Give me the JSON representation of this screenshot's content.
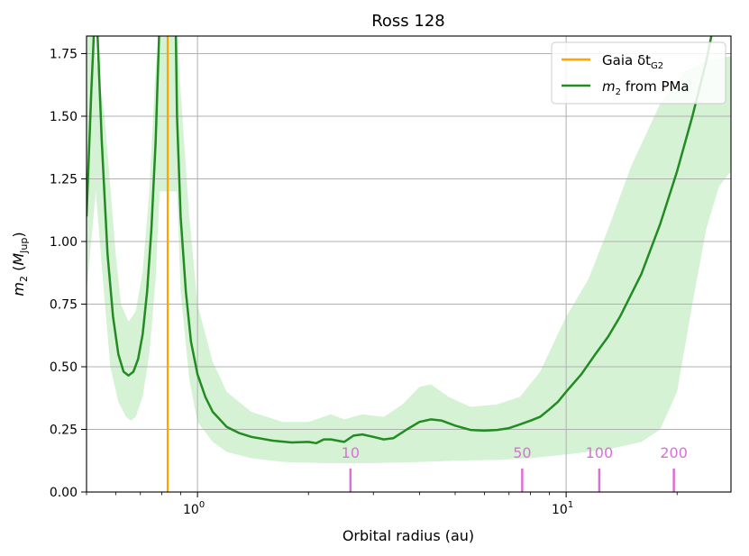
{
  "chart_data": {
    "type": "line",
    "title": "Ross 128",
    "xlabel": "Orbital radius (au)",
    "ylabel_parts": {
      "m": "m",
      "sub": "2",
      "open": " (",
      "M": "M",
      "msub": "Jup",
      "close": ")"
    },
    "x_scale": "log",
    "xlim": [
      0.5,
      28
    ],
    "ylim": [
      0,
      1.82
    ],
    "x_ticks": [
      {
        "value": 1,
        "label_base": "10",
        "label_exp": "0"
      },
      {
        "value": 10,
        "label_base": "10",
        "label_exp": "1"
      }
    ],
    "y_ticks": [
      0.0,
      0.25,
      0.5,
      0.75,
      1.0,
      1.25,
      1.5,
      1.75
    ],
    "y_tick_labels": [
      "0.00",
      "0.25",
      "0.50",
      "0.75",
      "1.00",
      "1.25",
      "1.50",
      "1.75"
    ],
    "grid": true,
    "legend_position": "top-right",
    "legend": [
      {
        "label_main": "Gaia δt",
        "label_sub": "G2",
        "color": "#ffa500"
      },
      {
        "label_main": "m",
        "label_sub": "2",
        "label_rest": " from PMa",
        "color": "#228b22"
      }
    ],
    "gaia_line": {
      "x": 0.83,
      "color": "#ffa500"
    },
    "series": [
      {
        "name": "m2 from PMa",
        "color": "#228b22",
        "points": [
          [
            0.5,
            1.1
          ],
          [
            0.515,
            1.6
          ],
          [
            0.53,
            2.0
          ],
          [
            0.55,
            1.4
          ],
          [
            0.57,
            0.95
          ],
          [
            0.59,
            0.7
          ],
          [
            0.61,
            0.55
          ],
          [
            0.63,
            0.48
          ],
          [
            0.65,
            0.465
          ],
          [
            0.67,
            0.48
          ],
          [
            0.69,
            0.53
          ],
          [
            0.71,
            0.63
          ],
          [
            0.73,
            0.8
          ],
          [
            0.75,
            1.05
          ],
          [
            0.77,
            1.4
          ],
          [
            0.79,
            1.9
          ],
          [
            0.87,
            2.0
          ],
          [
            0.88,
            1.5
          ],
          [
            0.9,
            1.1
          ],
          [
            0.93,
            0.8
          ],
          [
            0.96,
            0.6
          ],
          [
            1.0,
            0.47
          ],
          [
            1.05,
            0.38
          ],
          [
            1.1,
            0.32
          ],
          [
            1.2,
            0.26
          ],
          [
            1.3,
            0.235
          ],
          [
            1.4,
            0.22
          ],
          [
            1.6,
            0.205
          ],
          [
            1.8,
            0.198
          ],
          [
            2.0,
            0.2
          ],
          [
            2.1,
            0.195
          ],
          [
            2.2,
            0.21
          ],
          [
            2.3,
            0.21
          ],
          [
            2.5,
            0.2
          ],
          [
            2.65,
            0.225
          ],
          [
            2.8,
            0.23
          ],
          [
            3.0,
            0.22
          ],
          [
            3.2,
            0.21
          ],
          [
            3.4,
            0.215
          ],
          [
            3.7,
            0.25
          ],
          [
            4.0,
            0.28
          ],
          [
            4.3,
            0.29
          ],
          [
            4.6,
            0.285
          ],
          [
            5.0,
            0.265
          ],
          [
            5.5,
            0.248
          ],
          [
            6.0,
            0.245
          ],
          [
            6.5,
            0.248
          ],
          [
            7.0,
            0.255
          ],
          [
            7.5,
            0.27
          ],
          [
            8.0,
            0.285
          ],
          [
            8.5,
            0.3
          ],
          [
            9.0,
            0.33
          ],
          [
            9.5,
            0.36
          ],
          [
            10.0,
            0.4
          ],
          [
            11.0,
            0.47
          ],
          [
            12.0,
            0.55
          ],
          [
            13.0,
            0.62
          ],
          [
            14.0,
            0.7
          ],
          [
            16.0,
            0.87
          ],
          [
            18.0,
            1.07
          ],
          [
            20.0,
            1.28
          ],
          [
            22.0,
            1.5
          ],
          [
            24.0,
            1.72
          ],
          [
            25.0,
            1.85
          ]
        ]
      }
    ],
    "band": {
      "color": "#d5f2d5",
      "upper": [
        [
          0.5,
          1.9
        ],
        [
          0.52,
          2.0
        ],
        [
          0.56,
          1.5
        ],
        [
          0.6,
          0.95
        ],
        [
          0.62,
          0.75
        ],
        [
          0.65,
          0.68
        ],
        [
          0.68,
          0.72
        ],
        [
          0.71,
          0.88
        ],
        [
          0.74,
          1.2
        ],
        [
          0.77,
          1.7
        ],
        [
          0.79,
          2.0
        ],
        [
          0.88,
          2.0
        ],
        [
          0.9,
          1.6
        ],
        [
          0.95,
          1.1
        ],
        [
          1.0,
          0.75
        ],
        [
          1.1,
          0.52
        ],
        [
          1.2,
          0.4
        ],
        [
          1.4,
          0.32
        ],
        [
          1.7,
          0.28
        ],
        [
          2.0,
          0.28
        ],
        [
          2.3,
          0.31
        ],
        [
          2.5,
          0.29
        ],
        [
          2.8,
          0.31
        ],
        [
          3.2,
          0.3
        ],
        [
          3.6,
          0.35
        ],
        [
          4.0,
          0.42
        ],
        [
          4.3,
          0.43
        ],
        [
          4.8,
          0.38
        ],
        [
          5.5,
          0.34
        ],
        [
          6.5,
          0.35
        ],
        [
          7.5,
          0.38
        ],
        [
          8.5,
          0.48
        ],
        [
          10.0,
          0.7
        ],
        [
          11.5,
          0.85
        ],
        [
          13.0,
          1.05
        ],
        [
          15.0,
          1.3
        ],
        [
          18.0,
          1.55
        ],
        [
          21.0,
          1.68
        ],
        [
          24.0,
          1.72
        ],
        [
          28.0,
          1.74
        ]
      ],
      "lower": [
        [
          0.5,
          0.8
        ],
        [
          0.53,
          1.2
        ],
        [
          0.55,
          0.9
        ],
        [
          0.58,
          0.5
        ],
        [
          0.61,
          0.36
        ],
        [
          0.64,
          0.3
        ],
        [
          0.66,
          0.285
        ],
        [
          0.68,
          0.3
        ],
        [
          0.71,
          0.38
        ],
        [
          0.74,
          0.55
        ],
        [
          0.77,
          0.85
        ],
        [
          0.79,
          1.2
        ],
        [
          0.88,
          1.2
        ],
        [
          0.9,
          0.8
        ],
        [
          0.95,
          0.45
        ],
        [
          1.0,
          0.28
        ],
        [
          1.1,
          0.2
        ],
        [
          1.2,
          0.16
        ],
        [
          1.4,
          0.135
        ],
        [
          1.7,
          0.12
        ],
        [
          2.2,
          0.115
        ],
        [
          3.0,
          0.115
        ],
        [
          4.0,
          0.12
        ],
        [
          5.0,
          0.125
        ],
        [
          6.5,
          0.128
        ],
        [
          8.0,
          0.135
        ],
        [
          10.0,
          0.15
        ],
        [
          13.0,
          0.17
        ],
        [
          16.0,
          0.2
        ],
        [
          18.0,
          0.25
        ],
        [
          20.0,
          0.4
        ],
        [
          22.0,
          0.75
        ],
        [
          24.0,
          1.05
        ],
        [
          26.0,
          1.22
        ],
        [
          28.0,
          1.28
        ]
      ]
    },
    "period_markers": {
      "color": "#da70d6",
      "items": [
        {
          "x": 2.6,
          "label": "10"
        },
        {
          "x": 7.6,
          "label": "50"
        },
        {
          "x": 12.3,
          "label": "100"
        },
        {
          "x": 19.6,
          "label": "200"
        }
      ]
    }
  }
}
